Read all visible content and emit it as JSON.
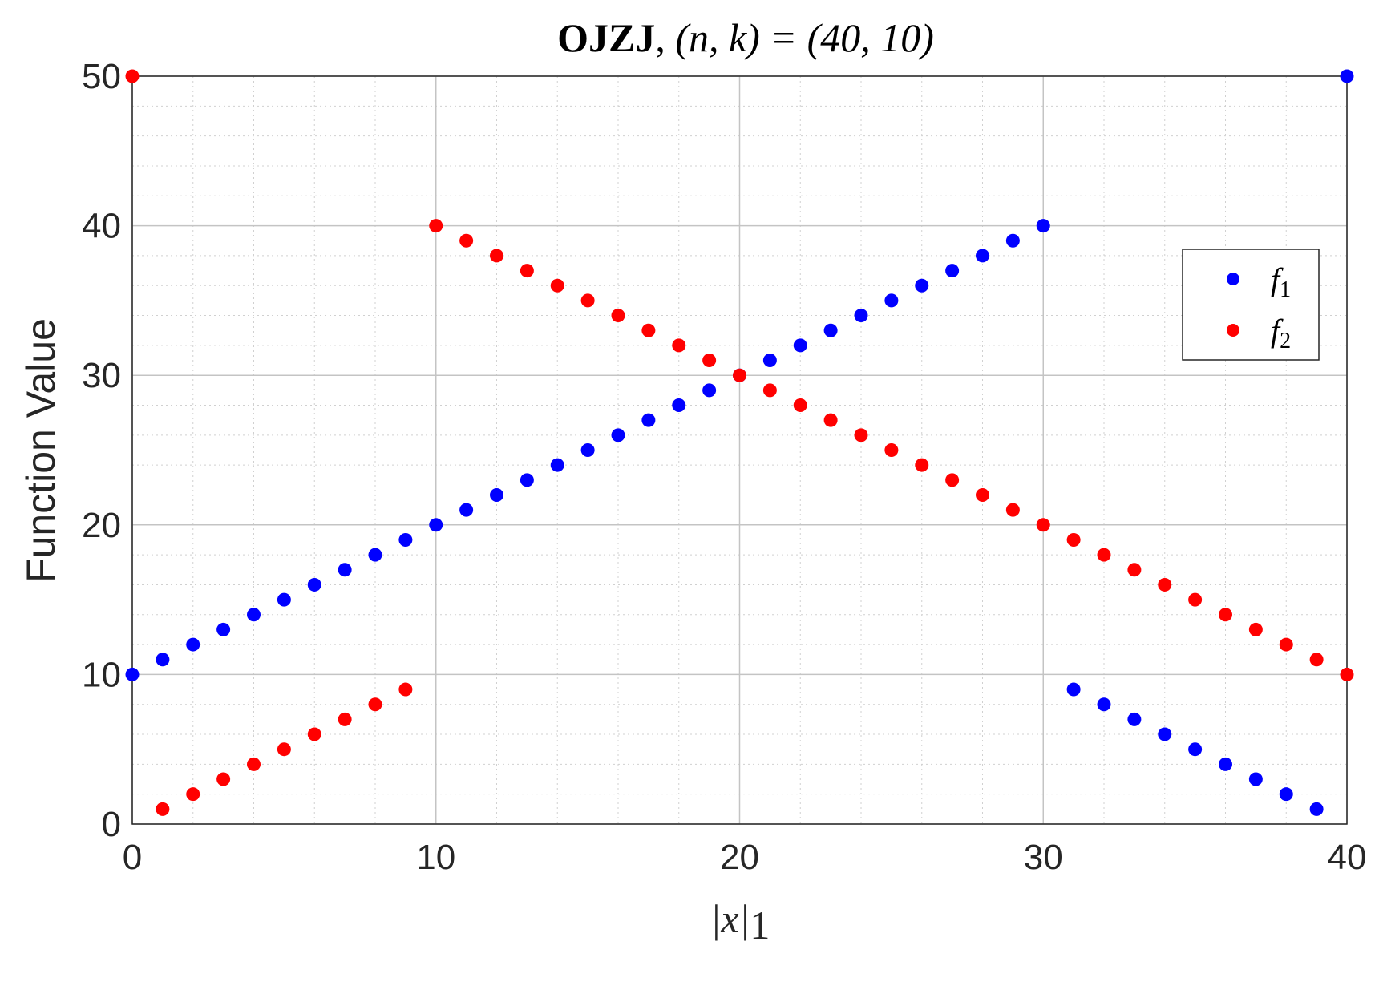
{
  "chart_data": {
    "type": "scatter",
    "title": {
      "bold": "OJZJ",
      "sep": ", ",
      "math": "(n, k) = (40, 10)"
    },
    "xlabel": "|x|",
    "xlabel_sub": "1",
    "ylabel": "Function Value",
    "xlim": [
      0,
      40
    ],
    "ylim": [
      0,
      50
    ],
    "xticks": [
      "0",
      "10",
      "20",
      "30",
      "40"
    ],
    "yticks": [
      "0",
      "10",
      "20",
      "30",
      "40",
      "50"
    ],
    "grid": true,
    "minor_grid": true,
    "legend_position": "right",
    "series": [
      {
        "name": "f",
        "name_sub": "1",
        "color": "#0000ff",
        "x": [
          0,
          1,
          2,
          3,
          4,
          5,
          6,
          7,
          8,
          9,
          10,
          11,
          12,
          13,
          14,
          15,
          16,
          17,
          18,
          19,
          20,
          21,
          22,
          23,
          24,
          25,
          26,
          27,
          28,
          29,
          30,
          31,
          32,
          33,
          34,
          35,
          36,
          37,
          38,
          39,
          40
        ],
        "y": [
          10,
          11,
          12,
          13,
          14,
          15,
          16,
          17,
          18,
          19,
          20,
          21,
          22,
          23,
          24,
          25,
          26,
          27,
          28,
          29,
          30,
          31,
          32,
          33,
          34,
          35,
          36,
          37,
          38,
          39,
          40,
          9,
          8,
          7,
          6,
          5,
          4,
          3,
          2,
          1,
          50
        ]
      },
      {
        "name": "f",
        "name_sub": "2",
        "color": "#ff0000",
        "x": [
          0,
          1,
          2,
          3,
          4,
          5,
          6,
          7,
          8,
          9,
          10,
          11,
          12,
          13,
          14,
          15,
          16,
          17,
          18,
          19,
          20,
          21,
          22,
          23,
          24,
          25,
          26,
          27,
          28,
          29,
          30,
          31,
          32,
          33,
          34,
          35,
          36,
          37,
          38,
          39,
          40
        ],
        "y": [
          50,
          1,
          2,
          3,
          4,
          5,
          6,
          7,
          8,
          9,
          40,
          39,
          38,
          37,
          36,
          35,
          34,
          33,
          32,
          31,
          30,
          29,
          28,
          27,
          26,
          25,
          24,
          23,
          22,
          21,
          20,
          19,
          18,
          17,
          16,
          15,
          14,
          13,
          12,
          11,
          10
        ]
      }
    ]
  }
}
